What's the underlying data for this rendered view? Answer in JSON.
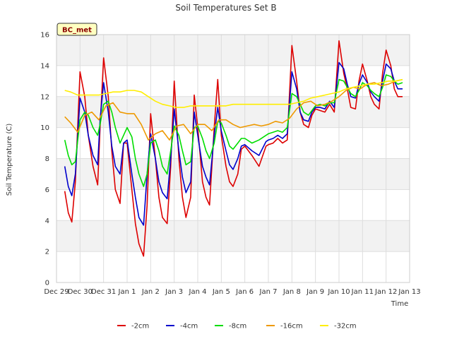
{
  "chart_data": {
    "type": "line",
    "title": "Soil Temperatures Set B",
    "xlabel": "Time",
    "ylabel": "Soil Temperature (C)",
    "site_badge": "BC_met",
    "ylim": [
      0,
      16
    ],
    "yticks": [
      0,
      2,
      4,
      6,
      8,
      10,
      12,
      14,
      16
    ],
    "xlim": [
      0,
      15
    ],
    "xticks": [
      {
        "x": 0,
        "label": "Dec 29"
      },
      {
        "x": 1,
        "label": "Dec 30"
      },
      {
        "x": 2,
        "label": "Dec 31"
      },
      {
        "x": 3,
        "label": "Jan 1"
      },
      {
        "x": 4,
        "label": "Jan 2"
      },
      {
        "x": 5,
        "label": "Jan 3"
      },
      {
        "x": 6,
        "label": "Jan 4"
      },
      {
        "x": 7,
        "label": "Jan 5"
      },
      {
        "x": 8,
        "label": "Jan 6"
      },
      {
        "x": 9,
        "label": "Jan 7"
      },
      {
        "x": 10,
        "label": "Jan 8"
      },
      {
        "x": 11,
        "label": "Jan 9"
      },
      {
        "x": 12,
        "label": "Jan 10"
      },
      {
        "x": 13,
        "label": "Jan 11"
      },
      {
        "x": 14,
        "label": "Jan 12"
      },
      {
        "x": 15,
        "label": "Jan 13"
      }
    ],
    "series": [
      {
        "name": "-2cm",
        "color": "#dd0000",
        "x": [
          0.35,
          0.5,
          0.65,
          0.8,
          1.0,
          1.2,
          1.35,
          1.55,
          1.75,
          1.85,
          2.0,
          2.2,
          2.35,
          2.5,
          2.7,
          2.85,
          3.0,
          3.2,
          3.35,
          3.5,
          3.7,
          3.85,
          4.0,
          4.2,
          4.35,
          4.5,
          4.7,
          4.85,
          5.0,
          5.2,
          5.35,
          5.5,
          5.7,
          5.85,
          6.0,
          6.2,
          6.35,
          6.5,
          6.7,
          6.85,
          7.0,
          7.2,
          7.35,
          7.5,
          7.7,
          7.85,
          8.0,
          8.3,
          8.6,
          8.9,
          9.0,
          9.2,
          9.4,
          9.6,
          9.8,
          10.0,
          10.2,
          10.35,
          10.5,
          10.7,
          10.85,
          11.0,
          11.2,
          11.4,
          11.6,
          11.8,
          12.0,
          12.2,
          12.35,
          12.5,
          12.7,
          12.85,
          13.0,
          13.2,
          13.35,
          13.5,
          13.7,
          13.85,
          14.0,
          14.2,
          14.35,
          14.5,
          14.7
        ],
        "values": [
          5.9,
          4.5,
          3.9,
          6.5,
          13.6,
          12.0,
          9.5,
          7.5,
          6.3,
          10.0,
          14.5,
          12.0,
          8.5,
          6.0,
          5.1,
          9.0,
          9.0,
          6.0,
          3.8,
          2.5,
          1.7,
          5.0,
          10.9,
          8.0,
          5.5,
          4.2,
          3.8,
          7.5,
          13.0,
          8.0,
          5.5,
          4.2,
          5.5,
          12.1,
          10.0,
          6.5,
          5.5,
          5.0,
          10.0,
          13.1,
          9.5,
          7.5,
          6.5,
          6.2,
          7.0,
          8.6,
          8.8,
          8.2,
          7.5,
          8.8,
          8.9,
          9.0,
          9.3,
          9.0,
          9.2,
          15.3,
          13.0,
          11.0,
          10.2,
          10.0,
          10.8,
          11.2,
          11.1,
          11.0,
          11.5,
          11.0,
          15.6,
          13.5,
          12.5,
          11.3,
          11.2,
          13.0,
          14.1,
          13.0,
          12.0,
          11.5,
          11.2,
          13.5,
          15.0,
          14.0,
          12.5,
          12.0,
          12.0
        ]
      },
      {
        "name": "-4cm",
        "color": "#0000cc",
        "x": [
          0.35,
          0.5,
          0.65,
          0.8,
          1.0,
          1.2,
          1.35,
          1.55,
          1.75,
          1.85,
          2.0,
          2.2,
          2.35,
          2.5,
          2.7,
          2.85,
          3.0,
          3.2,
          3.35,
          3.5,
          3.7,
          3.85,
          4.0,
          4.2,
          4.35,
          4.5,
          4.7,
          4.85,
          5.0,
          5.2,
          5.35,
          5.5,
          5.7,
          5.85,
          6.0,
          6.2,
          6.35,
          6.5,
          6.7,
          6.85,
          7.0,
          7.2,
          7.35,
          7.5,
          7.7,
          7.85,
          8.0,
          8.3,
          8.6,
          8.9,
          9.0,
          9.2,
          9.4,
          9.6,
          9.8,
          10.0,
          10.2,
          10.35,
          10.5,
          10.7,
          10.85,
          11.0,
          11.2,
          11.4,
          11.6,
          11.8,
          12.0,
          12.2,
          12.35,
          12.5,
          12.7,
          12.85,
          13.0,
          13.2,
          13.35,
          13.5,
          13.7,
          13.85,
          14.0,
          14.2,
          14.35,
          14.5,
          14.7
        ],
        "values": [
          7.5,
          6.2,
          5.6,
          7.0,
          11.9,
          11.0,
          9.5,
          8.2,
          7.6,
          10.5,
          12.9,
          11.0,
          8.8,
          7.5,
          7.0,
          9.0,
          9.2,
          7.0,
          5.5,
          4.2,
          3.7,
          7.0,
          9.6,
          8.0,
          6.5,
          5.8,
          5.4,
          8.0,
          11.2,
          8.5,
          6.8,
          5.8,
          6.5,
          11.0,
          9.5,
          7.5,
          6.8,
          6.3,
          9.5,
          11.3,
          9.8,
          8.5,
          7.6,
          7.3,
          8.0,
          8.8,
          8.9,
          8.5,
          8.2,
          9.1,
          9.2,
          9.3,
          9.5,
          9.3,
          9.6,
          13.6,
          12.5,
          11.0,
          10.5,
          10.4,
          11.0,
          11.3,
          11.3,
          11.2,
          11.7,
          11.3,
          14.2,
          13.8,
          12.8,
          12.0,
          11.9,
          12.8,
          13.4,
          12.9,
          12.3,
          12.0,
          11.7,
          13.0,
          14.1,
          13.8,
          13.0,
          12.5,
          12.5
        ]
      },
      {
        "name": "-8cm",
        "color": "#00dd00",
        "x": [
          0.35,
          0.5,
          0.65,
          0.8,
          1.0,
          1.2,
          1.35,
          1.55,
          1.75,
          1.85,
          2.0,
          2.2,
          2.35,
          2.5,
          2.7,
          2.85,
          3.0,
          3.2,
          3.35,
          3.5,
          3.7,
          3.85,
          4.0,
          4.2,
          4.35,
          4.5,
          4.7,
          4.85,
          5.0,
          5.2,
          5.35,
          5.5,
          5.7,
          5.85,
          6.0,
          6.2,
          6.35,
          6.5,
          6.7,
          6.85,
          7.0,
          7.2,
          7.35,
          7.5,
          7.7,
          7.85,
          8.0,
          8.3,
          8.6,
          8.9,
          9.0,
          9.2,
          9.4,
          9.6,
          9.8,
          10.0,
          10.2,
          10.35,
          10.5,
          10.7,
          10.85,
          11.0,
          11.2,
          11.4,
          11.6,
          11.8,
          12.0,
          12.2,
          12.35,
          12.5,
          12.7,
          12.85,
          13.0,
          13.2,
          13.35,
          13.5,
          13.7,
          13.85,
          14.0,
          14.2,
          14.35,
          14.5,
          14.7
        ],
        "values": [
          9.2,
          8.2,
          7.6,
          7.8,
          10.5,
          11.0,
          10.8,
          10.0,
          9.5,
          10.2,
          11.5,
          11.7,
          11.0,
          10.0,
          9.0,
          9.5,
          10.0,
          9.4,
          8.0,
          7.0,
          6.2,
          7.0,
          9.0,
          9.2,
          8.5,
          7.5,
          7.0,
          8.5,
          10.1,
          9.5,
          8.5,
          7.6,
          7.8,
          10.0,
          10.1,
          9.3,
          8.5,
          8.0,
          9.0,
          10.4,
          10.3,
          9.5,
          8.8,
          8.6,
          9.0,
          9.3,
          9.3,
          9.0,
          9.2,
          9.5,
          9.6,
          9.7,
          9.8,
          9.7,
          10.0,
          12.2,
          12.0,
          11.5,
          11.0,
          10.8,
          11.1,
          11.4,
          11.5,
          11.4,
          11.6,
          11.6,
          13.1,
          13.0,
          12.6,
          12.2,
          12.0,
          12.4,
          12.9,
          12.7,
          12.4,
          12.2,
          12.0,
          12.6,
          13.4,
          13.3,
          13.0,
          12.8,
          12.9
        ]
      },
      {
        "name": "-16cm",
        "color": "#ee9900",
        "x": [
          0.35,
          0.6,
          0.9,
          1.2,
          1.5,
          1.8,
          2.1,
          2.4,
          2.7,
          3.0,
          3.3,
          3.6,
          3.9,
          4.2,
          4.5,
          4.8,
          5.1,
          5.4,
          5.7,
          6.0,
          6.3,
          6.6,
          6.9,
          7.2,
          7.5,
          7.8,
          8.1,
          8.4,
          8.7,
          9.0,
          9.3,
          9.6,
          9.9,
          10.2,
          10.5,
          10.8,
          11.1,
          11.4,
          11.7,
          12.0,
          12.3,
          12.6,
          12.9,
          13.2,
          13.5,
          13.8,
          14.1,
          14.4,
          14.7
        ],
        "values": [
          10.7,
          10.3,
          9.7,
          10.8,
          11.0,
          10.5,
          11.4,
          11.6,
          11.0,
          10.9,
          10.9,
          10.2,
          9.2,
          9.6,
          9.8,
          9.2,
          10.1,
          10.2,
          9.6,
          10.2,
          10.2,
          9.8,
          10.5,
          10.5,
          10.2,
          10.0,
          10.1,
          10.2,
          10.1,
          10.2,
          10.4,
          10.3,
          10.6,
          11.2,
          11.6,
          11.7,
          11.4,
          11.5,
          11.7,
          12.0,
          12.4,
          12.6,
          12.5,
          12.8,
          12.9,
          12.7,
          12.8,
          13.0,
          13.1
        ]
      },
      {
        "name": "-32cm",
        "color": "#ffee00",
        "x": [
          0.35,
          0.6,
          0.9,
          1.2,
          1.5,
          1.8,
          2.1,
          2.4,
          2.7,
          3.0,
          3.3,
          3.6,
          3.9,
          4.2,
          4.5,
          4.8,
          5.1,
          5.4,
          5.7,
          6.0,
          6.3,
          6.6,
          6.9,
          7.2,
          7.5,
          7.8,
          8.1,
          8.4,
          8.7,
          9.0,
          9.3,
          9.6,
          9.9,
          10.2,
          10.5,
          10.8,
          11.1,
          11.4,
          11.7,
          12.0,
          12.3,
          12.6,
          12.9,
          13.2,
          13.5,
          13.8,
          14.1,
          14.4,
          14.7
        ],
        "values": [
          12.4,
          12.3,
          12.1,
          12.1,
          12.1,
          12.1,
          12.2,
          12.3,
          12.3,
          12.4,
          12.4,
          12.3,
          12.0,
          11.7,
          11.5,
          11.4,
          11.3,
          11.3,
          11.4,
          11.4,
          11.4,
          11.4,
          11.4,
          11.4,
          11.5,
          11.5,
          11.5,
          11.5,
          11.5,
          11.5,
          11.5,
          11.5,
          11.5,
          11.6,
          11.7,
          11.9,
          12.0,
          12.1,
          12.2,
          12.3,
          12.5,
          12.6,
          12.7,
          12.8,
          12.8,
          12.9,
          13.0,
          13.0,
          13.1
        ]
      }
    ]
  }
}
